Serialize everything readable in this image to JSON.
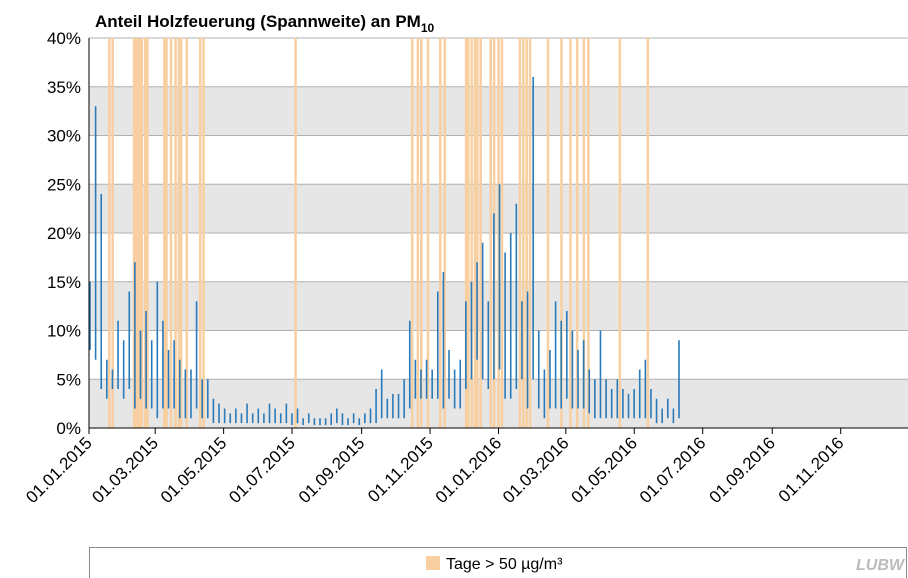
{
  "chart_data": {
    "type": "range",
    "title": "Anteil Holzfeuerung (Spannweite) an PM",
    "title_subscript": "10",
    "logo": "LUBW",
    "color": "#2a7ab9",
    "xlim": [
      "01.01.2015",
      "31.12.2016"
    ],
    "xticks": [
      "01.01.2015",
      "01.03.2015",
      "01.05.2015",
      "01.07.2015",
      "01.09.2015",
      "01.11.2015",
      "01.01.2016",
      "01.03.2016",
      "01.05.2016",
      "01.07.2016",
      "01.09.2016",
      "01.11.2016"
    ],
    "ylim": [
      0,
      40
    ],
    "yticks": [
      {
        "value": 0,
        "label": "0%"
      },
      {
        "value": 5,
        "label": "5%"
      },
      {
        "value": 10,
        "label": "10%"
      },
      {
        "value": 15,
        "label": "15%"
      },
      {
        "value": 20,
        "label": "20%"
      },
      {
        "value": 25,
        "label": "25%"
      },
      {
        "value": 30,
        "label": "30%"
      },
      {
        "value": 35,
        "label": "35%"
      },
      {
        "value": 40,
        "label": "40%"
      }
    ],
    "grid": true,
    "bands": {
      "name": "Tage > 50 µg/m³",
      "color": "#f8cfa0",
      "dates": [
        "18.01.2015",
        "21.01.2015",
        "09.02.2015",
        "11.02.2015",
        "13.02.2015",
        "14.02.2015",
        "16.02.2015",
        "19.02.2015",
        "21.02.2015",
        "08.03.2015",
        "10.03.2015",
        "14.03.2015",
        "18.03.2015",
        "21.03.2015",
        "23.03.2015",
        "28.03.2015",
        "09.04.2015",
        "12.04.2015",
        "03.07.2015",
        "15.10.2015",
        "20.10.2015",
        "23.10.2015",
        "29.10.2015",
        "09.11.2015",
        "13.11.2015",
        "02.12.2015",
        "04.12.2015",
        "07.12.2015",
        "10.12.2015",
        "12.12.2015",
        "15.12.2015",
        "24.12.2015",
        "27.12.2015",
        "31.12.2015",
        "03.01.2016",
        "19.01.2016",
        "22.01.2016",
        "25.01.2016",
        "28.01.2016",
        "13.02.2016",
        "25.02.2016",
        "04.03.2016",
        "10.03.2016",
        "16.03.2016",
        "20.03.2016",
        "17.04.2016",
        "12.05.2016"
      ]
    },
    "x": [
      "01.01.2015",
      "06.01.2015",
      "11.01.2015",
      "16.01.2015",
      "21.01.2015",
      "26.01.2015",
      "31.01.2015",
      "05.02.2015",
      "10.02.2015",
      "15.02.2015",
      "20.02.2015",
      "25.02.2015",
      "02.03.2015",
      "07.03.2015",
      "12.03.2015",
      "17.03.2015",
      "22.03.2015",
      "27.03.2015",
      "01.04.2015",
      "06.04.2015",
      "11.04.2015",
      "16.04.2015",
      "21.04.2015",
      "26.04.2015",
      "01.05.2015",
      "06.05.2015",
      "11.05.2015",
      "16.05.2015",
      "21.05.2015",
      "26.05.2015",
      "31.05.2015",
      "05.06.2015",
      "10.06.2015",
      "15.06.2015",
      "20.06.2015",
      "25.06.2015",
      "30.06.2015",
      "05.07.2015",
      "10.07.2015",
      "15.07.2015",
      "20.07.2015",
      "25.07.2015",
      "30.07.2015",
      "04.08.2015",
      "09.08.2015",
      "14.08.2015",
      "19.08.2015",
      "24.08.2015",
      "29.08.2015",
      "03.09.2015",
      "08.09.2015",
      "13.09.2015",
      "18.09.2015",
      "23.09.2015",
      "28.09.2015",
      "03.10.2015",
      "08.10.2015",
      "13.10.2015",
      "18.10.2015",
      "23.10.2015",
      "28.10.2015",
      "02.11.2015",
      "07.11.2015",
      "12.11.2015",
      "17.11.2015",
      "22.11.2015",
      "27.11.2015",
      "02.12.2015",
      "07.12.2015",
      "12.12.2015",
      "17.12.2015",
      "22.12.2015",
      "27.12.2015",
      "01.01.2016",
      "06.01.2016",
      "11.01.2016",
      "16.01.2016",
      "21.01.2016",
      "26.01.2016",
      "31.01.2016",
      "05.02.2016",
      "10.02.2016",
      "15.02.2016",
      "20.02.2016",
      "25.02.2016",
      "01.03.2016",
      "06.03.2016",
      "11.03.2016",
      "16.03.2016",
      "21.03.2016",
      "26.03.2016",
      "31.03.2016",
      "05.04.2016",
      "10.04.2016",
      "15.04.2016",
      "20.04.2016",
      "25.04.2016",
      "30.04.2016",
      "05.05.2016",
      "10.05.2016",
      "15.05.2016",
      "20.05.2016",
      "25.05.2016",
      "30.05.2016",
      "04.06.2016",
      "09.06.2016"
    ],
    "low": [
      8,
      7,
      4,
      3,
      4,
      4,
      3,
      4,
      2,
      3,
      2,
      2,
      1,
      2,
      2,
      2,
      1,
      1,
      1,
      2,
      1,
      1,
      0.5,
      0.5,
      0.5,
      0.5,
      0.5,
      0.5,
      0.5,
      0.5,
      0.5,
      0.5,
      0.5,
      0.5,
      0.5,
      0.5,
      0.3,
      0.5,
      0.3,
      0.5,
      0.3,
      0.3,
      0.3,
      0.3,
      0.5,
      0.3,
      0.3,
      0.5,
      0.3,
      0.5,
      0.5,
      0.5,
      1,
      1,
      1,
      1,
      1,
      2,
      3,
      3,
      3,
      3,
      3,
      2,
      3,
      2,
      2,
      4,
      5,
      7,
      5,
      4,
      5,
      6,
      3,
      3,
      4,
      5,
      2,
      5,
      2,
      1,
      2,
      2,
      2,
      3,
      2,
      2,
      2,
      1.5,
      1,
      1,
      1,
      1,
      1,
      1,
      1,
      1,
      1,
      1,
      1,
      0.5,
      0.5,
      1,
      0.5,
      1
    ],
    "high": [
      15,
      33,
      24,
      7,
      6,
      11,
      9,
      14,
      17,
      10,
      12,
      9,
      15,
      11,
      8,
      9,
      7,
      6,
      6,
      13,
      5,
      5,
      3,
      2.5,
      2,
      1.5,
      2,
      1.5,
      2.5,
      1.5,
      2,
      1.5,
      2.5,
      2,
      1.5,
      2.5,
      1.5,
      2,
      1,
      1.5,
      1,
      1,
      1,
      1.5,
      2,
      1.5,
      1,
      1.5,
      1,
      1.5,
      2,
      4,
      6,
      3,
      3.5,
      3.5,
      5,
      11,
      7,
      6,
      7,
      6,
      14,
      16,
      8,
      6,
      7,
      13,
      15,
      17,
      19,
      13,
      22,
      25,
      18,
      20,
      23,
      13,
      14,
      36,
      10,
      6,
      8,
      13,
      11,
      12,
      10,
      8,
      9,
      6,
      5,
      10,
      5,
      4,
      5,
      4,
      3.5,
      4,
      6,
      7,
      4,
      3,
      2,
      3,
      2,
      9
    ]
  }
}
